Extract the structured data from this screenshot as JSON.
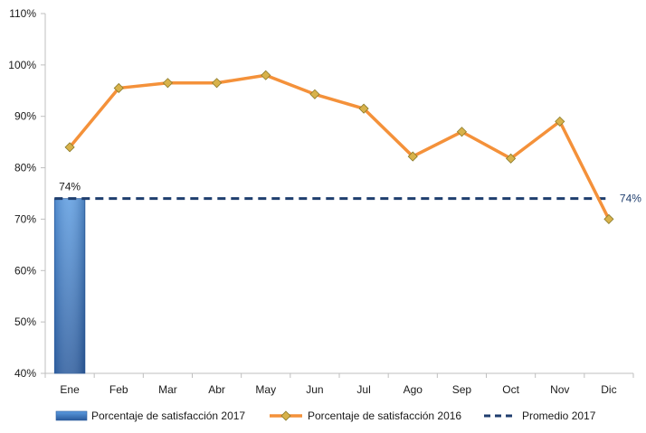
{
  "chart_data": {
    "type": "bar+line",
    "categories": [
      "Ene",
      "Feb",
      "Mar",
      "Abr",
      "May",
      "Jun",
      "Jul",
      "Ago",
      "Sep",
      "Oct",
      "Nov",
      "Dic"
    ],
    "ylim": [
      40,
      110
    ],
    "yticks": [
      40,
      50,
      60,
      70,
      80,
      90,
      100,
      110
    ],
    "ytick_labels": [
      "40%",
      "50%",
      "60%",
      "70%",
      "80%",
      "90%",
      "100%",
      "110%"
    ],
    "grid": false,
    "legend_position": "bottom",
    "series": [
      {
        "name": "Porcentaje de satisfacción 2017",
        "kind": "bar",
        "color": "#3a78c2",
        "values": [
          74,
          null,
          null,
          null,
          null,
          null,
          null,
          null,
          null,
          null,
          null,
          null
        ],
        "data_label": "74%"
      },
      {
        "name": "Porcentaje de satisfacción 2016",
        "kind": "line",
        "color": "#f4913a",
        "marker_color": "#d8b24a",
        "values": [
          84,
          95.5,
          96.5,
          96.5,
          98,
          94.3,
          91.5,
          82.2,
          87,
          81.8,
          89,
          70
        ]
      },
      {
        "name": "Promedio 2017",
        "kind": "dashed-line",
        "color": "#1f3e6e",
        "value": 74,
        "data_label": "74%"
      }
    ]
  }
}
